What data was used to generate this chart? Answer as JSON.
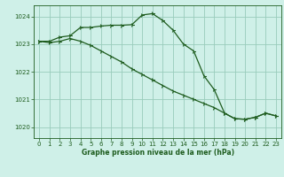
{
  "title": "Graphe pression niveau de la mer (hPa)",
  "background_color": "#cff0e8",
  "grid_color": "#99ccbb",
  "line_color": "#1e5c1e",
  "xlim": [
    -0.5,
    23.5
  ],
  "ylim": [
    1019.6,
    1024.4
  ],
  "yticks": [
    1020,
    1021,
    1022,
    1023,
    1024
  ],
  "xticks": [
    0,
    1,
    2,
    3,
    4,
    5,
    6,
    7,
    8,
    9,
    10,
    11,
    12,
    13,
    14,
    15,
    16,
    17,
    18,
    19,
    20,
    21,
    22,
    23
  ],
  "line1_x": [
    0,
    1,
    2,
    3,
    4,
    5,
    6,
    7,
    8,
    9,
    10,
    11,
    12,
    13,
    14,
    15,
    16,
    17,
    18,
    19,
    20,
    21,
    22,
    23
  ],
  "line1_y": [
    1023.1,
    1023.1,
    1023.25,
    1023.3,
    1023.6,
    1023.6,
    1023.65,
    1023.68,
    1023.68,
    1023.7,
    1024.05,
    1024.1,
    1023.85,
    1023.5,
    1023.0,
    1022.75,
    1021.85,
    1021.35,
    1020.5,
    1020.3,
    1020.28,
    1020.35,
    1020.5,
    1020.4
  ],
  "line2_x": [
    0,
    1,
    2,
    3,
    4,
    5,
    6,
    7,
    8,
    9,
    10,
    11,
    12,
    13,
    14,
    15,
    16,
    17,
    18,
    19,
    20,
    21,
    22,
    23
  ],
  "line2_y": [
    1023.1,
    1023.05,
    1023.1,
    1023.2,
    1023.1,
    1022.95,
    1022.75,
    1022.55,
    1022.35,
    1022.1,
    1021.9,
    1021.7,
    1021.5,
    1021.3,
    1021.15,
    1021.0,
    1020.85,
    1020.7,
    1020.5,
    1020.3,
    1020.28,
    1020.35,
    1020.5,
    1020.4
  ]
}
